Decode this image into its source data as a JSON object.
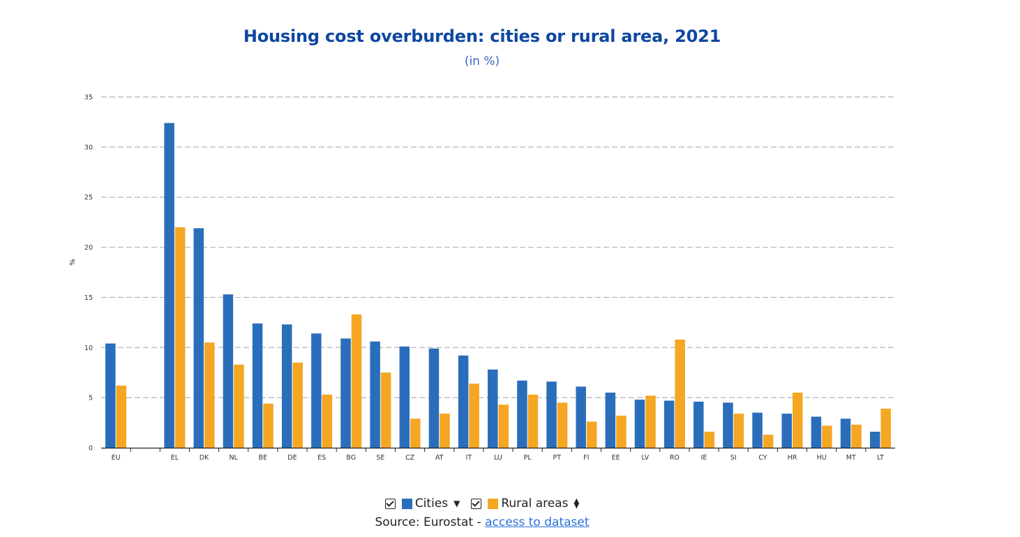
{
  "title": "Housing cost overburden: cities or rural area, 2021",
  "subtitle": "(in %)",
  "legend": {
    "cities_label": "Cities",
    "rural_label": "Rural areas"
  },
  "source": {
    "prefix": "Source: Eurostat - ",
    "link_text": "access to dataset"
  },
  "colors": {
    "cities": "#2a6ebb",
    "rural": "#f5a623",
    "title": "#0e47a1",
    "grid": "#b5b5b5"
  },
  "icons": {
    "cities_sort": "sort-descending-icon",
    "rural_sort": "sort-both-icon"
  },
  "chart_data": {
    "type": "bar",
    "categories": [
      "EU",
      "",
      "EL",
      "DK",
      "NL",
      "BE",
      "DE",
      "ES",
      "BG",
      "SE",
      "CZ",
      "AT",
      "IT",
      "LU",
      "PL",
      "PT",
      "FI",
      "EE",
      "LV",
      "RO",
      "IE",
      "SI",
      "CY",
      "HR",
      "HU",
      "MT",
      "LT"
    ],
    "series": [
      {
        "name": "Cities",
        "values": [
          10.4,
          null,
          32.4,
          21.9,
          15.3,
          12.4,
          12.3,
          11.4,
          10.9,
          10.6,
          10.1,
          9.9,
          9.2,
          7.8,
          6.7,
          6.6,
          6.1,
          5.5,
          4.8,
          4.7,
          4.6,
          4.5,
          3.5,
          3.4,
          3.1,
          2.9,
          1.6
        ]
      },
      {
        "name": "Rural areas",
        "values": [
          6.2,
          null,
          22.0,
          10.5,
          8.3,
          4.4,
          8.5,
          5.3,
          13.3,
          7.5,
          2.9,
          3.4,
          6.4,
          4.3,
          5.3,
          4.5,
          2.6,
          3.2,
          5.2,
          10.8,
          1.6,
          3.4,
          1.3,
          5.5,
          2.2,
          2.3,
          3.9
        ]
      }
    ],
    "xlabel": "",
    "ylabel": "%",
    "ylim": [
      0,
      35
    ],
    "yticks": [
      0,
      5,
      10,
      15,
      20,
      25,
      30,
      35
    ],
    "grid": "horizontal dashed",
    "legend_position": "bottom-center"
  }
}
